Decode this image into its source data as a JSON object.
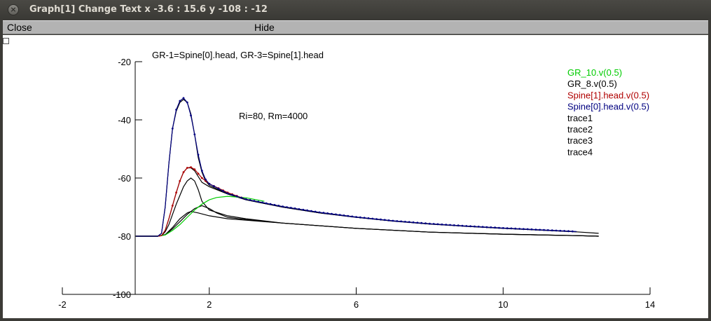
{
  "window": {
    "title": "Graph[1] Change Text x -3.6 : 15.6  y -108 : -12",
    "close_glyph": "×"
  },
  "menubar": {
    "close_label": "Close",
    "hide_label": "Hide"
  },
  "chart_data": {
    "type": "line",
    "title": "GR-1=Spine[0].head, GR-3=Spine[1].head",
    "annotation": "Ri=80, Rm=4000",
    "xlabel": "",
    "ylabel": "",
    "xlim": [
      -2,
      14
    ],
    "ylim": [
      -100,
      -20
    ],
    "x_ticks": [
      -2,
      2,
      6,
      10,
      14
    ],
    "y_ticks": [
      -20,
      -40,
      -60,
      -80,
      -100
    ],
    "x_tick_labels": [
      "-2",
      "2",
      "6",
      "10",
      "14"
    ],
    "y_tick_labels": [
      "-20",
      "-40",
      "-60",
      "-80",
      "-100"
    ],
    "legend_position": "top-right",
    "legend": [
      {
        "label": "GR_10.v(0.5)",
        "color": "#00cc00"
      },
      {
        "label": "GR_8.v(0.5)",
        "color": "#000000"
      },
      {
        "label": "Spine[1].head.v(0.5)",
        "color": "#b00000"
      },
      {
        "label": "Spine[0].head.v(0.5)",
        "color": "#000080"
      },
      {
        "label": "trace1",
        "color": "#000000"
      },
      {
        "label": "trace2",
        "color": "#000000"
      },
      {
        "label": "trace3",
        "color": "#000000"
      },
      {
        "label": "trace4",
        "color": "#000000"
      }
    ],
    "series": [
      {
        "name": "trace1",
        "color": "#000000",
        "points": [
          [
            0,
            -80
          ],
          [
            0.6,
            -80
          ],
          [
            0.7,
            -79
          ],
          [
            0.8,
            -70
          ],
          [
            0.9,
            -55
          ],
          [
            1.0,
            -43
          ],
          [
            1.1,
            -37
          ],
          [
            1.2,
            -34
          ],
          [
            1.3,
            -33
          ],
          [
            1.4,
            -34
          ],
          [
            1.5,
            -38
          ],
          [
            1.6,
            -45
          ],
          [
            1.7,
            -53
          ],
          [
            1.8,
            -58
          ],
          [
            1.9,
            -61
          ],
          [
            2.0,
            -62.5
          ],
          [
            2.5,
            -65.5
          ],
          [
            3.0,
            -67.5
          ],
          [
            4.0,
            -70
          ],
          [
            5.0,
            -72
          ],
          [
            6.0,
            -73.5
          ],
          [
            7.0,
            -74.8
          ],
          [
            8.0,
            -75.8
          ],
          [
            9.0,
            -76.6
          ],
          [
            10.0,
            -77.3
          ],
          [
            11.0,
            -77.9
          ],
          [
            12.0,
            -78.5
          ],
          [
            12.6,
            -79
          ]
        ]
      },
      {
        "name": "trace2",
        "color": "#000000",
        "points": [
          [
            0,
            -80
          ],
          [
            0.6,
            -80
          ],
          [
            0.7,
            -79.8
          ],
          [
            0.8,
            -78
          ],
          [
            0.9,
            -74
          ],
          [
            1.0,
            -69.5
          ],
          [
            1.1,
            -65
          ],
          [
            1.2,
            -61
          ],
          [
            1.3,
            -58
          ],
          [
            1.4,
            -56.5
          ],
          [
            1.5,
            -56.5
          ],
          [
            1.6,
            -57.5
          ],
          [
            1.7,
            -59.5
          ],
          [
            1.8,
            -61.5
          ],
          [
            2.0,
            -63
          ],
          [
            2.5,
            -65.5
          ],
          [
            3.0,
            -67.5
          ],
          [
            4.0,
            -70
          ],
          [
            5.0,
            -72
          ],
          [
            6.0,
            -73.5
          ],
          [
            7.0,
            -74.8
          ],
          [
            8.0,
            -75.8
          ],
          [
            9.0,
            -76.6
          ],
          [
            10.0,
            -77.3
          ],
          [
            11.0,
            -77.9
          ],
          [
            12.0,
            -78.5
          ]
        ]
      },
      {
        "name": "trace3",
        "color": "#000000",
        "points": [
          [
            0,
            -80
          ],
          [
            0.6,
            -80
          ],
          [
            0.7,
            -79.8
          ],
          [
            0.8,
            -78.5
          ],
          [
            0.9,
            -76
          ],
          [
            1.0,
            -72.5
          ],
          [
            1.1,
            -69
          ],
          [
            1.2,
            -66
          ],
          [
            1.3,
            -63
          ],
          [
            1.4,
            -61
          ],
          [
            1.5,
            -60
          ],
          [
            1.6,
            -61
          ],
          [
            1.7,
            -64
          ],
          [
            1.8,
            -68
          ],
          [
            2.0,
            -71
          ],
          [
            2.5,
            -73
          ],
          [
            3.0,
            -74
          ],
          [
            4.0,
            -75.5
          ],
          [
            6.0,
            -77.3
          ],
          [
            8.0,
            -78.6
          ],
          [
            10.0,
            -79.3
          ],
          [
            12.0,
            -79.8
          ],
          [
            12.6,
            -80
          ]
        ]
      },
      {
        "name": "trace4",
        "color": "#000000",
        "points": [
          [
            0,
            -80
          ],
          [
            0.6,
            -80
          ],
          [
            0.8,
            -79.5
          ],
          [
            1.0,
            -77
          ],
          [
            1.2,
            -74
          ],
          [
            1.4,
            -72
          ],
          [
            1.5,
            -71.5
          ],
          [
            1.7,
            -72
          ],
          [
            2.0,
            -73
          ],
          [
            2.5,
            -74
          ],
          [
            3.0,
            -74.5
          ],
          [
            4.0,
            -75.5
          ],
          [
            6.0,
            -77.3
          ],
          [
            8.0,
            -78.6
          ],
          [
            10.0,
            -79.3
          ],
          [
            12.0,
            -79.8
          ],
          [
            12.6,
            -80
          ]
        ]
      },
      {
        "name": "GR_8.v(0.5)",
        "color": "#000000",
        "points": [
          [
            0,
            -80
          ],
          [
            0.6,
            -80
          ],
          [
            0.8,
            -79.5
          ],
          [
            1.0,
            -77.5
          ],
          [
            1.2,
            -75
          ],
          [
            1.4,
            -72.5
          ],
          [
            1.6,
            -70.5
          ],
          [
            1.8,
            -69.5
          ],
          [
            2.0,
            -70.5
          ],
          [
            2.2,
            -72
          ],
          [
            2.5,
            -73.5
          ],
          [
            3.0,
            -74.3
          ],
          [
            4.0,
            -75.5
          ],
          [
            6.0,
            -77.3
          ],
          [
            8.0,
            -78.6
          ],
          [
            10.0,
            -79.3
          ],
          [
            12.0,
            -79.8
          ],
          [
            12.6,
            -80
          ]
        ]
      },
      {
        "name": "GR_10.v(0.5)",
        "color": "#00cc00",
        "points": [
          [
            0,
            -80
          ],
          [
            0.6,
            -80
          ],
          [
            0.8,
            -79.6
          ],
          [
            1.0,
            -78
          ],
          [
            1.2,
            -76
          ],
          [
            1.4,
            -73.5
          ],
          [
            1.6,
            -71
          ],
          [
            1.8,
            -69
          ],
          [
            2.0,
            -67.5
          ],
          [
            2.2,
            -66.7
          ],
          [
            2.5,
            -66.3
          ],
          [
            3.0,
            -66.8
          ],
          [
            3.5,
            -68
          ]
        ]
      },
      {
        "name": "Spine[1].head.v(0.5)",
        "color": "#b00000",
        "points": [
          [
            0,
            -80
          ],
          [
            0.6,
            -80
          ],
          [
            0.7,
            -79.8
          ],
          [
            0.8,
            -78
          ],
          [
            0.9,
            -74
          ],
          [
            1.0,
            -69.5
          ],
          [
            1.1,
            -65
          ],
          [
            1.2,
            -61
          ],
          [
            1.3,
            -58
          ],
          [
            1.4,
            -56.5
          ],
          [
            1.5,
            -56.3
          ],
          [
            1.6,
            -57
          ],
          [
            1.7,
            -58.5
          ],
          [
            1.8,
            -60
          ],
          [
            2.0,
            -62
          ],
          [
            2.5,
            -65
          ],
          [
            3.0,
            -67.3
          ]
        ]
      },
      {
        "name": "Spine[0].head.v(0.5)",
        "color": "#000080",
        "points": [
          [
            0,
            -80
          ],
          [
            0.6,
            -80
          ],
          [
            0.7,
            -79
          ],
          [
            0.8,
            -70
          ],
          [
            0.9,
            -55
          ],
          [
            1.0,
            -43
          ],
          [
            1.1,
            -36.5
          ],
          [
            1.2,
            -33.5
          ],
          [
            1.3,
            -32.5
          ],
          [
            1.4,
            -34
          ],
          [
            1.5,
            -38.5
          ],
          [
            1.6,
            -45
          ],
          [
            1.7,
            -52
          ],
          [
            1.8,
            -57.5
          ],
          [
            1.9,
            -60.5
          ],
          [
            2.0,
            -62
          ],
          [
            2.5,
            -65.3
          ],
          [
            3.0,
            -67.3
          ],
          [
            4.0,
            -69.8
          ],
          [
            5.0,
            -71.8
          ],
          [
            6.0,
            -73.4
          ],
          [
            7.0,
            -74.7
          ],
          [
            8.0,
            -75.7
          ],
          [
            9.0,
            -76.5
          ],
          [
            10.0,
            -77.2
          ],
          [
            11.0,
            -77.8
          ],
          [
            12.0,
            -78.4
          ]
        ]
      }
    ]
  }
}
